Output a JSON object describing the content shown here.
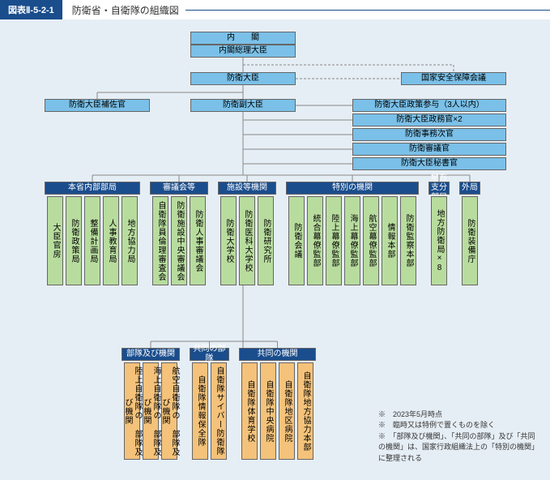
{
  "header": {
    "tag": "図表Ⅱ-5-2-1",
    "title": "防衛省・自衛隊の組織図"
  },
  "colors": {
    "bg": "#e6eef5",
    "blue": "#7ac0e8",
    "green": "#b8dc9e",
    "orange": "#f4c27a",
    "navy": "#1a4d8c",
    "line": "#888"
  },
  "top": {
    "naikaku": "内　　閣",
    "souri": "内閣総理大臣",
    "boueidaijin": "防衛大臣",
    "anpo": "国家安全保障会議",
    "hosakan": "防衛大臣補佐官",
    "fukudaijin": "防衛副大臣",
    "right": [
      "防衛大臣政策参与（3人以内）",
      "防衛大臣政務官×2",
      "防衛事務次官",
      "防衛審議官",
      "防衛大臣秘書官"
    ]
  },
  "mid": {
    "groups": [
      {
        "label": "本省内部部局",
        "color": "green",
        "items": [
          "大臣官房",
          "防衛政策局",
          "整備計画局",
          "人事教育局",
          "地方協力局"
        ]
      },
      {
        "label": "審議会等",
        "color": "green",
        "items": [
          "自衛隊員倫理審査会",
          "防衛施設中央審議会",
          "防衛人事審議会"
        ]
      },
      {
        "label": "施設等機関",
        "color": "green",
        "items": [
          "防衛大学校",
          "防衛医科大学校",
          "防衛研究所"
        ]
      },
      {
        "label": "特別の機関",
        "color": "green",
        "items": [
          "防衛会議",
          "統合幕僚監部",
          "陸上幕僚監部",
          "海上幕僚監部",
          "航空幕僚監部",
          "情報本部",
          "防衛監察本部"
        ]
      },
      {
        "label": "地方支分部局",
        "color": "green",
        "single": true,
        "items": [
          "地方防衛局×8"
        ]
      },
      {
        "label": "外局",
        "color": "green",
        "single": true,
        "items": [
          "防衛装備庁"
        ]
      }
    ]
  },
  "low": {
    "groups": [
      {
        "label": "部隊及び機関",
        "color": "orange",
        "items": [
          "陸上自衛隊の\n部隊及び機関",
          "海上自衛隊の\n部隊及び機関",
          "航空自衛隊の\n部隊及び機関"
        ]
      },
      {
        "label": "共同の部隊",
        "color": "orange",
        "items": [
          "自衛隊情報保全隊",
          "自衛隊サイバー防衛隊"
        ]
      },
      {
        "label": "共同の機関",
        "color": "orange",
        "items": [
          "自衛隊体育学校",
          "自衛隊中央病院",
          "自衛隊地区病院",
          "自衛隊地方協力本部"
        ]
      }
    ]
  },
  "notes": [
    "2023年5月時点",
    "臨時又は特例で置くものを除く",
    "「部隊及び機関」、「共同の部隊」及び「共同の機関」は、国家行政組織法上の「特別の機関」に整理される"
  ]
}
